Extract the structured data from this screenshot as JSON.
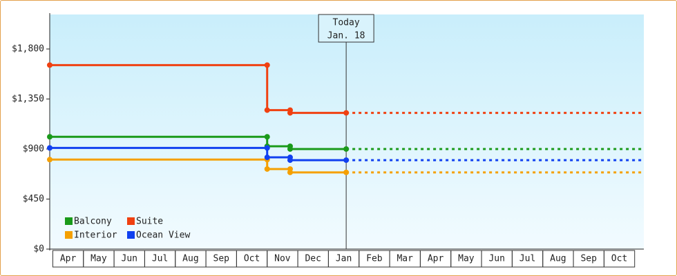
{
  "chart_data": {
    "type": "line",
    "categories": [
      "Apr",
      "May",
      "Jun",
      "Jul",
      "Aug",
      "Sep",
      "Oct",
      "Nov",
      "Dec",
      "Jan",
      "Feb",
      "Mar",
      "Apr",
      "May",
      "Jun",
      "Jul",
      "Aug",
      "Sep",
      "Oct"
    ],
    "x": [
      -0.1,
      7.0,
      7.0,
      7.75,
      7.75,
      9.58
    ],
    "xlim": [
      -0.1,
      19.3
    ],
    "ylim": [
      0,
      2110
    ],
    "yticks": [
      {
        "value": 0,
        "label": "$0"
      },
      {
        "value": 450,
        "label": "$450"
      },
      {
        "value": 900,
        "label": "$900"
      },
      {
        "value": 1350,
        "label": "$1,350"
      },
      {
        "value": 1800,
        "label": "$1,800"
      }
    ],
    "series": [
      {
        "name": "Balcony",
        "color": "#1a9a1a",
        "values": [
          1010,
          1010,
          925,
          925,
          900,
          900
        ]
      },
      {
        "name": "Suite",
        "color": "#f04010",
        "values": [
          1655,
          1655,
          1250,
          1250,
          1225,
          1225
        ]
      },
      {
        "name": "Interior",
        "color": "#f5a000",
        "values": [
          805,
          805,
          720,
          720,
          690,
          690
        ]
      },
      {
        "name": "Ocean View",
        "color": "#1040f0",
        "values": [
          910,
          910,
          825,
          825,
          800,
          800
        ]
      }
    ],
    "annotation": {
      "x": 9.58,
      "lines": [
        "Today",
        "Jan. 18"
      ]
    },
    "legend": "lower left"
  }
}
